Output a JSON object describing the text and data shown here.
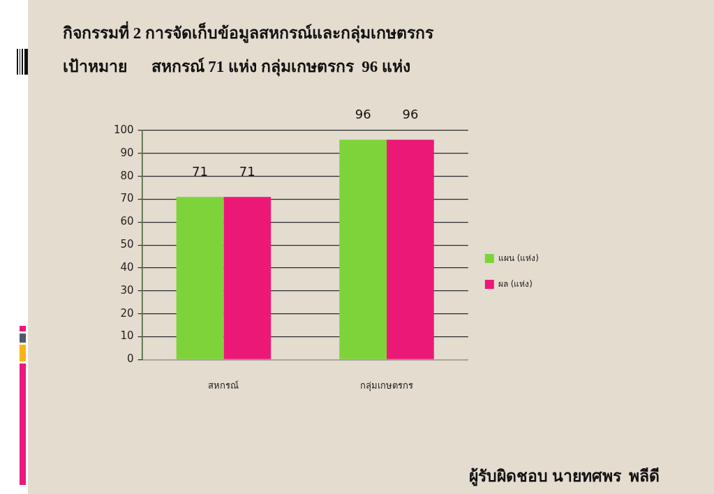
{
  "chart_data": {
    "type": "bar",
    "title": "กิจกรรมที่ 2 การจัดเก็บข้อมูลสหกรณ์และกลุ่มเกษตรกร",
    "subtitle": "เป้าหมาย      สหกรณ์ 71 แห่ง กลุ่มเกษตรกร  96 แห่ง",
    "annotations": [
      "ผู้รับผิดชอบ นายทศพร  พลีดี"
    ],
    "categories": [
      "สหกรณ์",
      "กลุ่มเกษตรกร"
    ],
    "series": [
      {
        "name": "แผน (แห่ง)",
        "color": "#7ed33a",
        "values": [
          71,
          96
        ]
      },
      {
        "name": "ผล (แห่ง)",
        "color": "#ec1878",
        "values": [
          71,
          96
        ]
      }
    ],
    "ylim": [
      0,
      100
    ],
    "yticks": [
      0,
      10,
      20,
      30,
      40,
      50,
      60,
      70,
      80,
      90,
      100
    ],
    "grid": "y",
    "legend": "right",
    "data_labels": true
  }
}
